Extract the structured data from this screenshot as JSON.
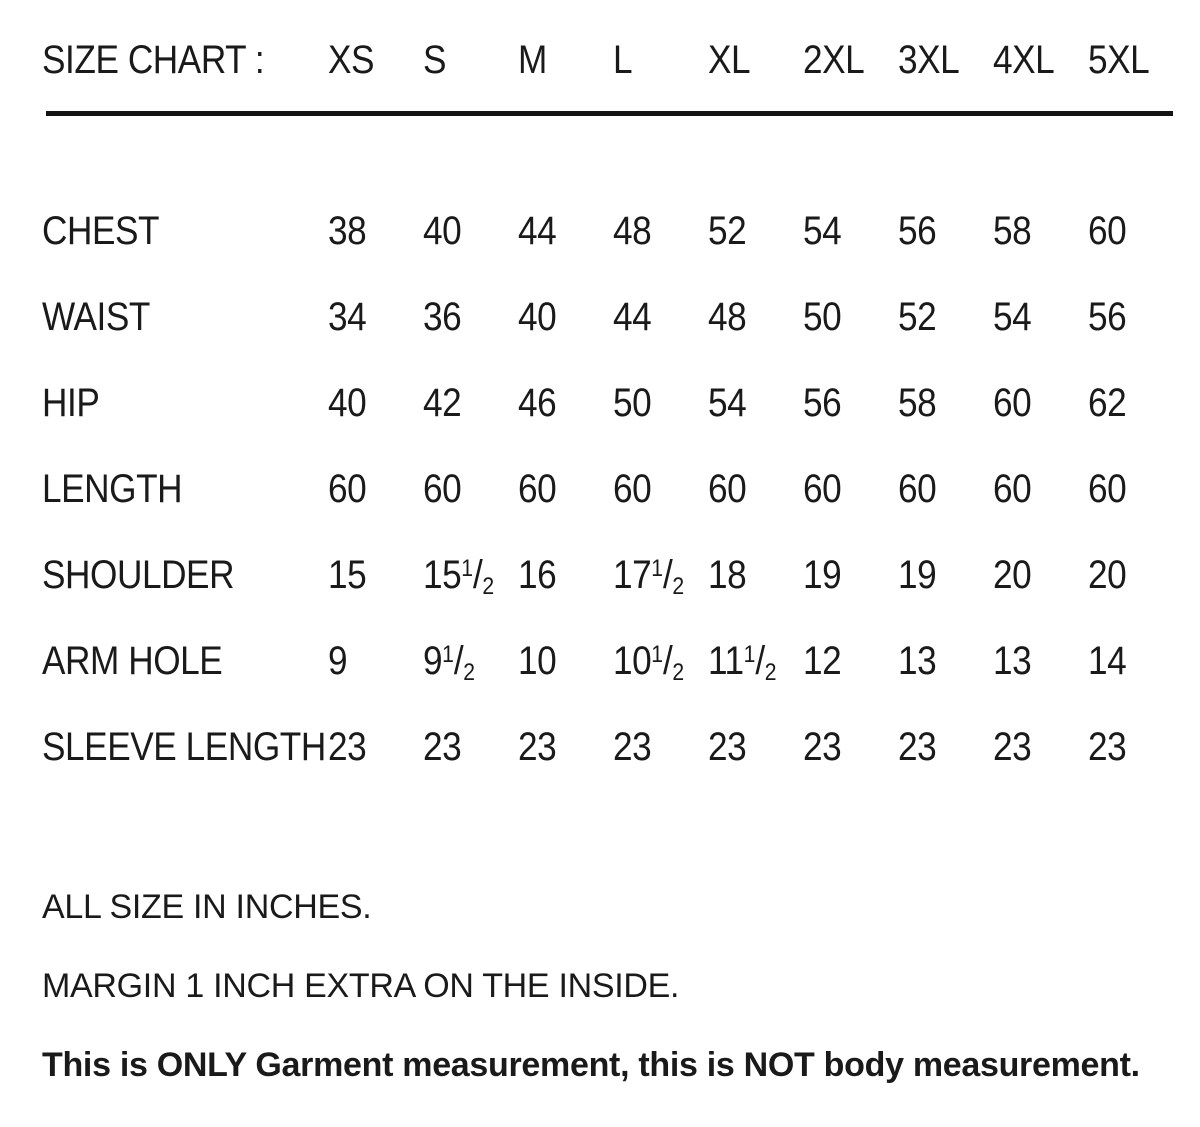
{
  "title": "SIZE CHART :",
  "columns": [
    "XS",
    "S",
    "M",
    "L",
    "XL",
    "2XL",
    "3XL",
    "4XL",
    "5XL"
  ],
  "rows": [
    {
      "label": "CHEST",
      "values": [
        "38",
        "40",
        "44",
        "48",
        "52",
        "54",
        "56",
        "58",
        "60"
      ]
    },
    {
      "label": "WAIST",
      "values": [
        "34",
        "36",
        "40",
        "44",
        "48",
        "50",
        "52",
        "54",
        "56"
      ]
    },
    {
      "label": "HIP",
      "values": [
        "40",
        "42",
        "46",
        "50",
        "54",
        "56",
        "58",
        "60",
        "62"
      ]
    },
    {
      "label": "LENGTH",
      "values": [
        "60",
        "60",
        "60",
        "60",
        "60",
        "60",
        "60",
        "60",
        "60"
      ]
    },
    {
      "label": "SHOULDER",
      "values": [
        "15",
        "15 1/2",
        "16",
        "17 1/2",
        "18",
        "19",
        "19",
        "20",
        "20"
      ]
    },
    {
      "label": "ARM HOLE",
      "values": [
        "9",
        "9 1/2",
        "10",
        "10 1/2",
        "11 1/2",
        "12",
        "13",
        "13",
        "14"
      ]
    },
    {
      "label": "SLEEVE LENGTH",
      "values": [
        "23",
        "23",
        "23",
        "23",
        "23",
        "23",
        "23",
        "23",
        "23"
      ]
    }
  ],
  "notes": [
    "ALL SIZE IN INCHES.",
    "MARGIN 1 INCH EXTRA ON THE INSIDE.",
    "This is ONLY Garment measurement, this is NOT body measurement."
  ],
  "colors": {
    "text": "#1a1a1a",
    "background": "#ffffff",
    "divider": "#141414"
  }
}
